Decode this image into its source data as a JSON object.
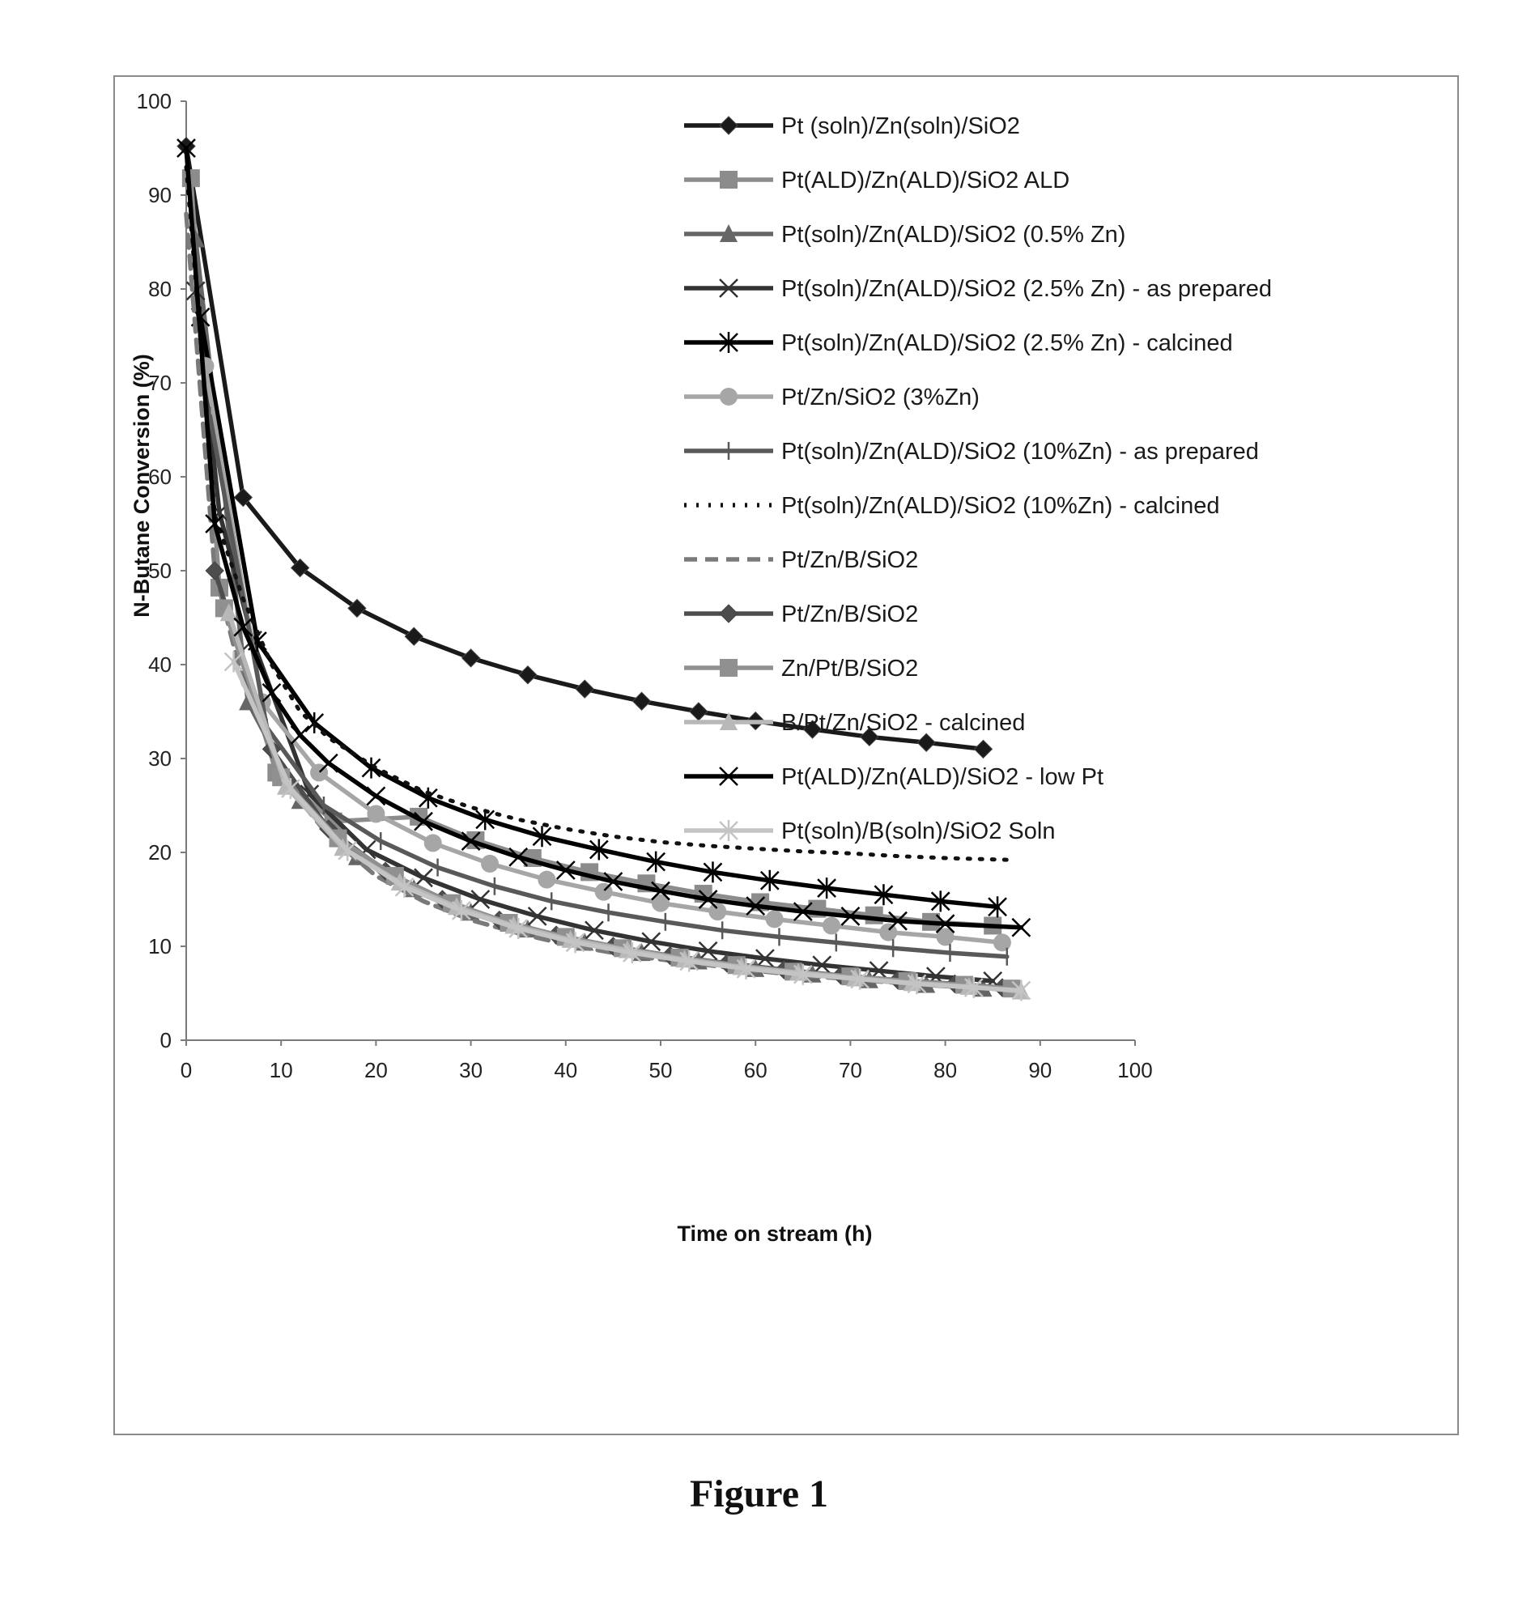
{
  "figure": {
    "caption": "Figure 1"
  },
  "chart_data": {
    "type": "line",
    "title": "",
    "xlabel": "Time on stream (h)",
    "ylabel": "N-Butane Conversion (%)",
    "xlim": [
      0,
      100
    ],
    "ylim": [
      0,
      100
    ],
    "x_ticks": [
      0,
      10,
      20,
      30,
      40,
      50,
      60,
      70,
      80,
      90,
      100
    ],
    "y_ticks": [
      0,
      10,
      20,
      30,
      40,
      50,
      60,
      70,
      80,
      90,
      100
    ],
    "grid": false,
    "legend_position": "top-right",
    "series": [
      {
        "name": "Pt (soln)/Zn(soln)/SiO2",
        "color": "#1a1a1a",
        "marker": "diamond",
        "dash": "solid",
        "x": [
          0,
          6,
          12,
          18,
          24,
          30,
          36,
          42,
          48,
          54,
          60,
          66,
          72,
          78,
          84
        ],
        "y": [
          95.2,
          57.8,
          50.3,
          46.0,
          43.0,
          40.7,
          38.9,
          37.4,
          36.1,
          35.0,
          34.0,
          33.1,
          32.3,
          31.7,
          31.0
        ]
      },
      {
        "name": "Pt(ALD)/Zn(ALD)/SiO2 ALD",
        "color": "#8c8c8c",
        "marker": "square",
        "dash": "solid",
        "x": [
          0.5,
          3.5,
          9.5,
          15.5,
          24.5,
          30.5,
          36.5,
          42.5,
          48.5,
          54.5,
          60.5,
          66.5,
          72.5,
          78.5,
          85
        ],
        "y": [
          91.8,
          48.2,
          28.5,
          23.3,
          23.8,
          21.3,
          19.4,
          17.9,
          16.7,
          15.6,
          14.7,
          14.0,
          13.3,
          12.6,
          12.2
        ]
      },
      {
        "name": "Pt(soln)/Zn(ALD)/SiO2 (0.5% Zn)",
        "color": "#666666",
        "marker": "triangle",
        "dash": "solid",
        "x": [
          1,
          6.5,
          12,
          18,
          24,
          30,
          36,
          42,
          48,
          54,
          60,
          66,
          72,
          78,
          84
        ],
        "y": [
          85.3,
          36.0,
          25.5,
          19.5,
          16.1,
          13.6,
          11.8,
          10.4,
          9.3,
          8.4,
          7.6,
          7.0,
          6.4,
          5.9,
          5.5
        ]
      },
      {
        "name": "Pt(soln)/Zn(ALD)/SiO2 (2.5% Zn) - as prepared",
        "color": "#333333",
        "marker": "x",
        "dash": "solid",
        "x": [
          1,
          3.5,
          7,
          13,
          19,
          25,
          31,
          37,
          43,
          49,
          55,
          61,
          67,
          73,
          79,
          85
        ],
        "y": [
          79.8,
          56.2,
          42.6,
          26.2,
          20.3,
          17.3,
          15.0,
          13.2,
          11.7,
          10.5,
          9.5,
          8.7,
          8.0,
          7.4,
          6.8,
          6.3
        ]
      },
      {
        "name": "Pt(soln)/Zn(ALD)/SiO2 (2.5% Zn) - calcined",
        "color": "#000000",
        "marker": "asterisk",
        "dash": "solid",
        "x": [
          1.5,
          7.5,
          13.5,
          19.5,
          25.5,
          31.5,
          37.5,
          43.5,
          49.5,
          55.5,
          61.5,
          67.5,
          73.5,
          79.5,
          85.5
        ],
        "y": [
          77.0,
          42.5,
          33.8,
          29.0,
          25.8,
          23.5,
          21.7,
          20.3,
          19.0,
          17.9,
          17.0,
          16.2,
          15.5,
          14.8,
          14.2
        ]
      },
      {
        "name": "Pt/Zn/SiO2 (3%Zn)",
        "color": "#a6a6a6",
        "marker": "circle",
        "dash": "solid",
        "x": [
          2,
          8,
          14,
          20,
          26,
          32,
          38,
          44,
          50,
          56,
          62,
          68,
          74,
          80,
          86
        ],
        "y": [
          71.8,
          36.0,
          28.5,
          24.1,
          21.0,
          18.8,
          17.1,
          15.8,
          14.6,
          13.7,
          12.9,
          12.2,
          11.5,
          11.0,
          10.4
        ]
      },
      {
        "name": "Pt(soln)/Zn(ALD)/SiO2 (10%Zn) - as prepared",
        "color": "#595959",
        "marker": "plus",
        "dash": "solid",
        "x": [
          2.5,
          8.5,
          14.5,
          20.5,
          26.5,
          32.5,
          38.5,
          44.5,
          50.5,
          56.5,
          62.5,
          68.5,
          74.5,
          80.5,
          86.5
        ],
        "y": [
          66.5,
          33.3,
          25.0,
          21.2,
          18.4,
          16.4,
          14.8,
          13.6,
          12.6,
          11.7,
          11.0,
          10.4,
          9.8,
          9.3,
          8.9
        ]
      },
      {
        "name": "Pt(soln)/Zn(ALD)/SiO2 (10%Zn) - calcined",
        "color": "#111111",
        "marker": "none",
        "dash": "dotted",
        "x": [
          0,
          3,
          6,
          9,
          12,
          15,
          20,
          25,
          30,
          35,
          40,
          45,
          50,
          55,
          60,
          65,
          70,
          75,
          80,
          87
        ],
        "y": [
          93.0,
          56.0,
          47.0,
          40.0,
          35.0,
          32.2,
          29.0,
          26.5,
          24.8,
          23.5,
          22.5,
          21.7,
          21.1,
          20.7,
          20.4,
          20.1,
          19.9,
          19.6,
          19.4,
          19.2
        ]
      },
      {
        "name": "Pt/Zn/B/SiO2",
        "color": "#7a7a7a",
        "marker": "none",
        "dash": "dashed",
        "x": [
          0,
          3,
          6,
          9,
          12,
          15,
          20,
          25,
          30,
          35,
          40,
          45,
          50,
          55,
          60,
          65,
          70,
          75,
          80,
          86
        ],
        "y": [
          88.0,
          50.0,
          38.0,
          31.0,
          25.5,
          21.8,
          17.5,
          14.8,
          12.8,
          11.4,
          10.2,
          9.3,
          8.6,
          8.0,
          7.4,
          6.9,
          6.5,
          6.1,
          5.8,
          5.4
        ]
      },
      {
        "name": "Pt/Zn/B/SiO2",
        "color": "#4d4d4d",
        "marker": "diamond",
        "dash": "solid",
        "x": [
          3,
          9,
          15,
          21,
          27,
          33,
          39,
          45,
          51,
          57,
          63,
          69,
          75,
          81,
          86
        ],
        "y": [
          50.0,
          31.0,
          22.5,
          18.0,
          15.0,
          12.8,
          11.2,
          10.0,
          9.0,
          8.2,
          7.5,
          6.9,
          6.4,
          6.0,
          5.6
        ]
      },
      {
        "name": "Zn/Pt/B/SiO2",
        "color": "#909090",
        "marker": "square",
        "dash": "solid",
        "x": [
          4,
          10,
          16,
          22,
          28,
          34,
          40,
          46,
          52,
          58,
          64,
          70,
          76,
          82,
          87
        ],
        "y": [
          46.0,
          28.0,
          21.5,
          17.5,
          14.6,
          12.5,
          11.0,
          9.8,
          8.8,
          8.0,
          7.3,
          6.8,
          6.3,
          5.9,
          5.5
        ]
      },
      {
        "name": "B/Pt/Zn/SiO2 - calcined",
        "color": "#b8b8b8",
        "marker": "triangle",
        "dash": "solid",
        "x": [
          4.5,
          10.5,
          16.5,
          22.5,
          28.5,
          34.5,
          40.5,
          46.5,
          52.5,
          58.5,
          64.5,
          70.5,
          76.5,
          82.5,
          88
        ],
        "y": [
          45.5,
          27.0,
          20.5,
          16.8,
          14.2,
          12.2,
          10.7,
          9.6,
          8.6,
          7.8,
          7.2,
          6.6,
          6.1,
          5.7,
          5.2
        ]
      },
      {
        "name": "Pt(ALD)/Zn(ALD)/SiO2 - low Pt",
        "color": "#000000",
        "marker": "x",
        "dash": "solid",
        "x": [
          0,
          3,
          6,
          9,
          12,
          15,
          20,
          25,
          30,
          35,
          40,
          45,
          50,
          55,
          60,
          65,
          70,
          75,
          80,
          88
        ],
        "y": [
          95.0,
          55.0,
          44.0,
          37.0,
          32.5,
          29.5,
          26.0,
          23.3,
          21.2,
          19.5,
          18.1,
          16.9,
          15.9,
          15.0,
          14.3,
          13.7,
          13.2,
          12.7,
          12.4,
          12.0
        ]
      },
      {
        "name": "Pt(soln)/B(soln)/SiO2 Soln",
        "color": "#c4c4c4",
        "marker": "asterisk",
        "dash": "solid",
        "x": [
          5,
          11,
          17,
          23,
          29,
          35,
          41,
          47,
          53,
          59,
          65,
          71,
          77,
          83,
          88
        ],
        "y": [
          40.3,
          26.8,
          20.2,
          16.3,
          13.8,
          11.9,
          10.4,
          9.3,
          8.4,
          7.6,
          7.0,
          6.5,
          6.0,
          5.6,
          5.3
        ]
      }
    ]
  }
}
